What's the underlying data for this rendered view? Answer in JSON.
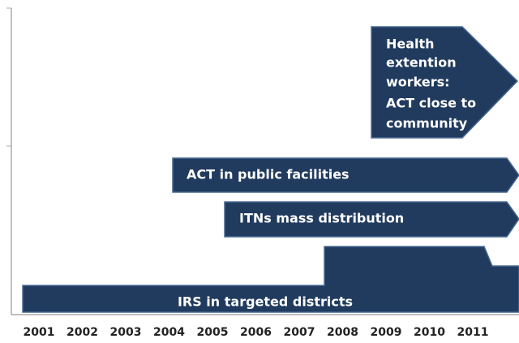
{
  "axis": {
    "years": [
      "2001",
      "2002",
      "2003",
      "2004",
      "2005",
      "2006",
      "2007",
      "2008",
      "2009",
      "2010",
      "2011"
    ]
  },
  "bars": [
    {
      "label": "IRS in targeted districts"
    },
    {
      "label": "ITNs mass distribution"
    },
    {
      "label": "ACT in public facilities"
    },
    {
      "lines": [
        "Health",
        "extention",
        "workers:",
        "ACT close to",
        "community"
      ]
    }
  ]
}
